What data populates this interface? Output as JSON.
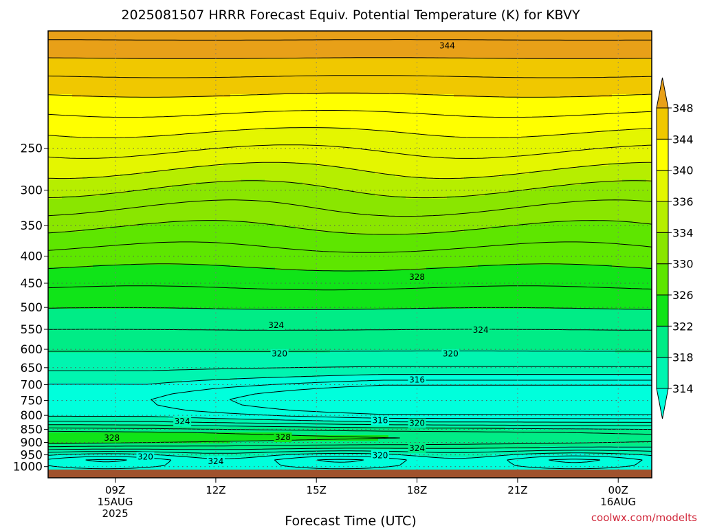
{
  "chart_data": {
    "type": "heatmap",
    "title": "2025081507 HRRR Forecast Equiv. Potential Temperature (K) for KBVY",
    "xlabel": "Forecast Time (UTC)",
    "ylabel": "",
    "credit": "coolwx.com/modelts",
    "y_scale": "log",
    "y_reversed": true,
    "ylim": [
      1050,
      150
    ],
    "y_ticks": [
      250,
      300,
      350,
      400,
      450,
      500,
      550,
      600,
      650,
      700,
      750,
      800,
      850,
      900,
      950,
      1000
    ],
    "x_ticks": [
      {
        "hour": 9,
        "line1": "09Z",
        "line2": "15AUG",
        "line3": "2025"
      },
      {
        "hour": 12,
        "line1": "12Z",
        "line2": "",
        "line3": ""
      },
      {
        "hour": 15,
        "line1": "15Z",
        "line2": "",
        "line3": ""
      },
      {
        "hour": 18,
        "line1": "18Z",
        "line2": "",
        "line3": ""
      },
      {
        "hour": 21,
        "line1": "21Z",
        "line2": "",
        "line3": ""
      },
      {
        "hour": 24,
        "line1": "00Z",
        "line2": "16AUG",
        "line3": ""
      }
    ],
    "xlim": [
      7,
      25
    ],
    "grid": true,
    "colorbar": {
      "placement": "right",
      "levels": [
        314,
        318,
        322,
        326,
        330,
        334,
        336,
        340,
        344,
        348
      ],
      "colors": [
        "#00ffdc",
        "#00f5b0",
        "#00ec86",
        "#10e418",
        "#5ee600",
        "#8ae600",
        "#b6ee00",
        "#e4f600",
        "#ffff00",
        "#f0c800",
        "#e8a018"
      ]
    },
    "ground_color": "#a0522d",
    "contour_labels": [
      {
        "text": "344",
        "hour": 18.9,
        "p": 160
      },
      {
        "text": "328",
        "hour": 18.0,
        "p": 438
      },
      {
        "text": "324",
        "hour": 13.8,
        "p": 540
      },
      {
        "text": "324",
        "hour": 19.9,
        "p": 552
      },
      {
        "text": "320",
        "hour": 13.9,
        "p": 612
      },
      {
        "text": "320",
        "hour": 19.0,
        "p": 612
      },
      {
        "text": "316",
        "hour": 18.0,
        "p": 685
      },
      {
        "text": "316",
        "hour": 16.9,
        "p": 818
      },
      {
        "text": "320",
        "hour": 18.0,
        "p": 828
      },
      {
        "text": "324",
        "hour": 11.0,
        "p": 822
      },
      {
        "text": "328",
        "hour": 8.9,
        "p": 882
      },
      {
        "text": "328",
        "hour": 14.0,
        "p": 880
      },
      {
        "text": "324",
        "hour": 18.0,
        "p": 923
      },
      {
        "text": "320",
        "hour": 16.9,
        "p": 952
      },
      {
        "text": "320",
        "hour": 9.9,
        "p": 958
      },
      {
        "text": "324",
        "hour": 12.0,
        "p": 977
      }
    ]
  }
}
